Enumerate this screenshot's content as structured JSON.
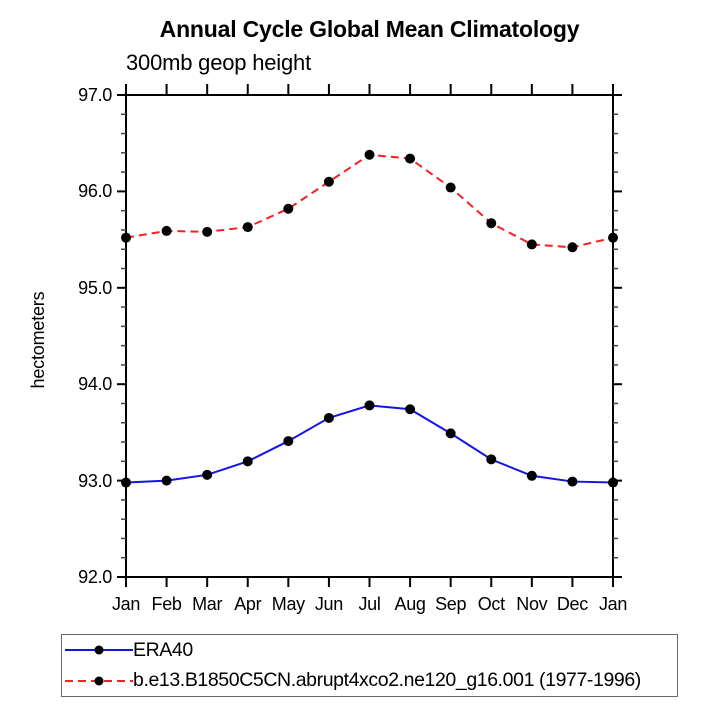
{
  "chart_data": {
    "type": "line",
    "title": "Annual Cycle Global Mean Climatology",
    "subtitle": "300mb geop height",
    "ylabel": "hectometers",
    "xlabel": "",
    "categories": [
      "Jan",
      "Feb",
      "Mar",
      "Apr",
      "May",
      "Jun",
      "Jul",
      "Aug",
      "Sep",
      "Oct",
      "Nov",
      "Dec",
      "Jan"
    ],
    "series": [
      {
        "name": "ERA40",
        "line_style": "solid",
        "color": "#1414e6",
        "marker": "black-filled-circle",
        "values": [
          92.98,
          93.0,
          93.06,
          93.2,
          93.41,
          93.65,
          93.78,
          93.74,
          93.49,
          93.22,
          93.05,
          92.99,
          92.98
        ]
      },
      {
        "name": "b.e13.B1850C5CN.abrupt4xco2.ne120_g16.001 (1977-1996)",
        "line_style": "dashed",
        "color": "#f52020",
        "marker": "black-filled-circle",
        "values": [
          95.52,
          95.59,
          95.58,
          95.63,
          95.82,
          96.1,
          96.38,
          96.34,
          96.04,
          95.67,
          95.45,
          95.42,
          95.52
        ]
      }
    ],
    "ylim": [
      92.0,
      97.0
    ],
    "ytick_labels": [
      "97.0",
      "96.0",
      "95.0",
      "94.0",
      "93.0",
      "92.0"
    ],
    "ytick_values": [
      97,
      96,
      95,
      94,
      93,
      92
    ],
    "minor_tick_interval": 0.2,
    "grid": false,
    "frame": "box-with-outward-ticks",
    "legend_position": "bottom-left-box",
    "marker_color": "#000000"
  }
}
